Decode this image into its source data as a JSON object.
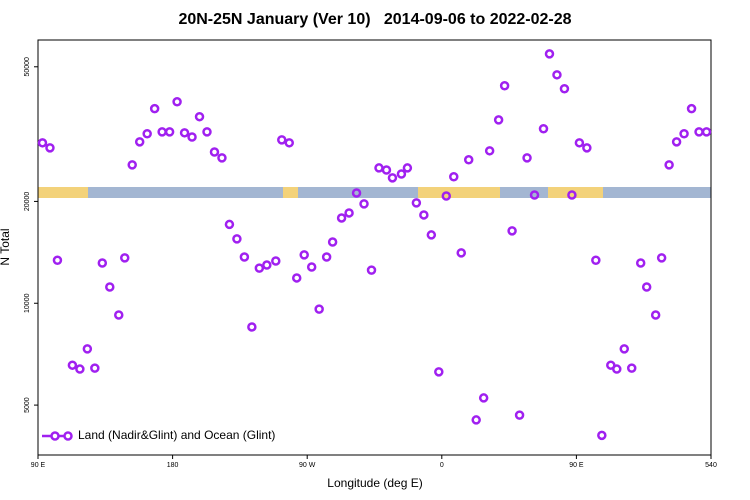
{
  "chart_data": {
    "type": "scatter",
    "title": "20N-25N January (Ver 10)   2014-09-06 to 2022-02-28",
    "x_label": "Longitude (deg E)",
    "y_label": "N Total",
    "log_y": true,
    "legend": "bottom-left",
    "xlim": [
      90,
      540
    ],
    "ylim": [
      3560,
      60000
    ],
    "xticks": [
      {
        "value": 90,
        "label": "90 E"
      },
      180,
      {
        "value": 270,
        "label": "90 W"
      },
      {
        "value": 360,
        "label": "0"
      },
      {
        "value": 450,
        "label": "90 E"
      },
      540
    ],
    "yticks": [
      5000,
      10000,
      20000,
      50000
    ],
    "series": [
      {
        "name": "Land (Nadir&Glint) and Ocean (Glint)",
        "color": "#a020f0",
        "x": [
          93,
          98,
          103,
          113,
          118,
          123,
          128,
          133,
          138,
          144,
          148,
          153,
          158,
          163,
          168,
          173,
          178,
          183,
          188,
          193,
          198,
          203,
          208,
          213,
          218,
          223,
          228,
          233,
          238,
          243,
          249,
          253,
          258,
          263,
          268,
          273,
          278,
          283,
          287,
          293,
          298,
          303,
          308,
          313,
          318,
          323,
          327,
          333,
          337,
          343,
          348,
          353,
          358,
          363,
          368,
          373,
          378,
          383,
          388,
          392,
          398,
          402,
          407,
          412,
          417,
          422,
          428,
          432,
          437,
          442,
          447,
          452,
          457,
          463,
          467,
          473,
          477,
          482,
          487,
          493,
          497,
          503,
          507,
          512,
          517,
          522,
          527,
          532,
          537
        ],
        "y": [
          29800,
          28800,
          13400,
          6560,
          6390,
          7330,
          6430,
          13150,
          11170,
          9230,
          13620,
          25650,
          30000,
          31700,
          37600,
          32100,
          32100,
          39400,
          31900,
          31000,
          35600,
          32100,
          28000,
          26900,
          17100,
          15500,
          13700,
          8510,
          12700,
          12970,
          13330,
          30400,
          29800,
          11880,
          13900,
          12800,
          9610,
          13700,
          15170,
          17870,
          18490,
          21180,
          19670,
          12530,
          25120,
          24770,
          23480,
          24100,
          25120,
          19800,
          18240,
          15920,
          6270,
          20750,
          23660,
          14090,
          26550,
          4520,
          5250,
          28220,
          34830,
          43950,
          16370,
          4670,
          26900,
          20890,
          32800,
          54580,
          47340,
          43050,
          20890,
          29800,
          28800,
          13400,
          4070,
          6560,
          6390,
          7330,
          6430,
          13150,
          11170,
          9230,
          13620,
          25650,
          30000,
          31700,
          37600,
          32100,
          32100
        ]
      }
    ]
  }
}
